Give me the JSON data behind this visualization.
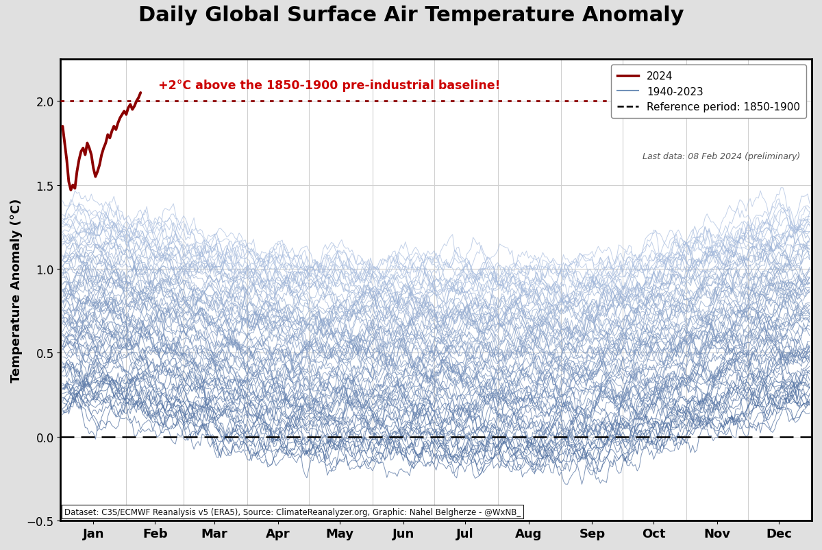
{
  "title": "Daily Global Surface Air Temperature Anomaly",
  "ylabel": "Temperature Anomaly (°C)",
  "xlabel_months": [
    "Jan",
    "Feb",
    "Mar",
    "Apr",
    "May",
    "Jun",
    "Jul",
    "Aug",
    "Sep",
    "Oct",
    "Nov",
    "Dec"
  ],
  "ylim": [
    -0.5,
    2.25
  ],
  "xlim": [
    0,
    366
  ],
  "ref_line_y": 0.0,
  "ref_line_2c": 2.0,
  "annotation_text": "+2°C above the 1850-1900 pre-industrial baseline!",
  "annotation_color": "#cc0000",
  "footnote": "Dataset: C3S/ECMWF Reanalysis v5 (ERA5), Source: ClimateReanalyzer.org, Graphic: Nahel Belgherze - @WxNB_",
  "last_data": "Last data: 08 Feb 2024 (preliminary)",
  "bg_color": "#e0e0e0",
  "plot_bg_color": "#ffffff",
  "n_historical_years": 84,
  "year_2024_days": 39,
  "seed": 42
}
